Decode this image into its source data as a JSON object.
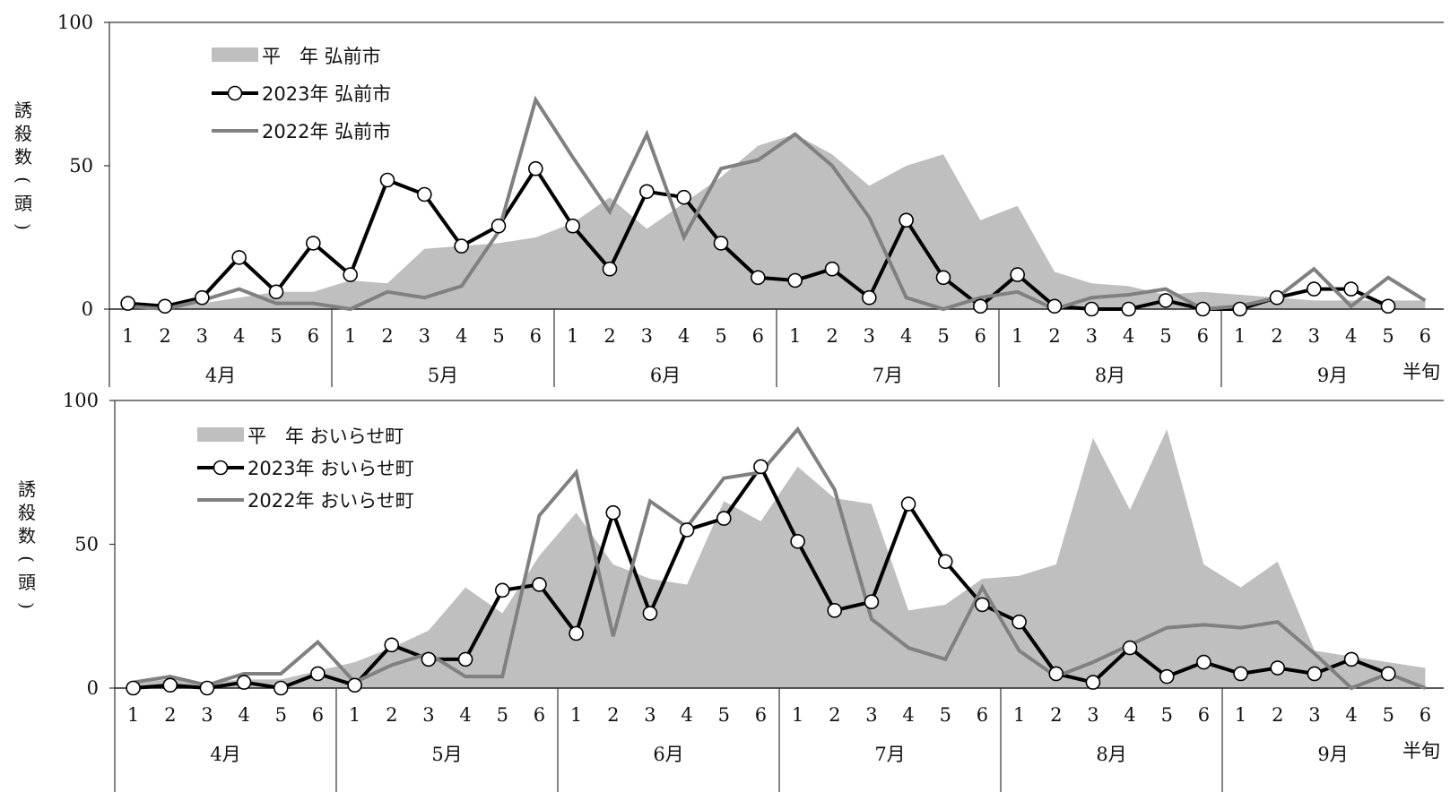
{
  "chart_data": [
    {
      "type": "line",
      "ylabel": "誘殺数(頭)",
      "ylim": [
        0,
        100
      ],
      "yticks": [
        0,
        50,
        100
      ],
      "months": [
        "4月",
        "5月",
        "6月",
        "7月",
        "8月",
        "9月"
      ],
      "subperiods": [
        "1",
        "2",
        "3",
        "4",
        "5",
        "6"
      ],
      "xunit": "半旬",
      "series": [
        {
          "name": "平　年 弘前市",
          "style": "area",
          "color": "#bfbfbf",
          "values": [
            1,
            1,
            2,
            4,
            6,
            6,
            10,
            9,
            21,
            22,
            23,
            25,
            30,
            39,
            28,
            37,
            46,
            57,
            61,
            54,
            43,
            50,
            54,
            31,
            36,
            13,
            9,
            8,
            5,
            6,
            5,
            4,
            3,
            3,
            3,
            3
          ]
        },
        {
          "name": "2023年 弘前市",
          "style": "line-marker",
          "color": "#000000",
          "values": [
            2,
            1,
            4,
            18,
            6,
            23,
            12,
            45,
            40,
            22,
            29,
            49,
            29,
            14,
            41,
            39,
            23,
            11,
            10,
            14,
            4,
            31,
            11,
            1,
            12,
            1,
            0,
            0,
            3,
            0,
            0,
            4,
            7,
            7,
            1,
            null
          ]
        },
        {
          "name": "2022年 弘前市",
          "style": "line",
          "color": "#808080",
          "values": [
            1,
            0,
            3,
            7,
            2,
            2,
            0,
            6,
            4,
            8,
            27,
            73,
            53,
            34,
            61,
            25,
            49,
            52,
            61,
            50,
            32,
            4,
            0,
            4,
            6,
            0,
            4,
            5,
            7,
            0,
            1,
            4,
            14,
            1,
            11,
            3
          ]
        }
      ]
    },
    {
      "type": "line",
      "ylabel": "誘殺数(頭)",
      "ylim": [
        0,
        100
      ],
      "yticks": [
        0,
        50,
        100
      ],
      "months": [
        "4月",
        "5月",
        "6月",
        "7月",
        "8月",
        "9月"
      ],
      "subperiods": [
        "1",
        "2",
        "3",
        "4",
        "5",
        "6"
      ],
      "xunit": "半旬",
      "series": [
        {
          "name": "平　年 おいらせ町",
          "style": "area",
          "color": "#bfbfbf",
          "values": [
            2,
            3,
            2,
            3,
            3,
            6,
            9,
            14,
            20,
            35,
            26,
            46,
            61,
            43,
            38,
            36,
            65,
            58,
            77,
            66,
            64,
            27,
            29,
            38,
            39,
            43,
            87,
            62,
            90,
            43,
            35,
            44,
            13,
            11,
            9,
            7
          ]
        },
        {
          "name": "2023年 おいらせ町",
          "style": "line-marker",
          "color": "#000000",
          "values": [
            0,
            1,
            0,
            2,
            0,
            5,
            1,
            15,
            10,
            10,
            34,
            36,
            19,
            61,
            26,
            55,
            59,
            77,
            51,
            27,
            30,
            64,
            44,
            29,
            23,
            5,
            2,
            14,
            4,
            9,
            5,
            7,
            5,
            10,
            5,
            null
          ]
        },
        {
          "name": "2022年 おいらせ町",
          "style": "line",
          "color": "#808080",
          "values": [
            2,
            4,
            1,
            5,
            5,
            16,
            2,
            8,
            12,
            4,
            4,
            60,
            75,
            18,
            65,
            56,
            73,
            75,
            90,
            69,
            24,
            14,
            10,
            35,
            13,
            4,
            9,
            15,
            21,
            22,
            21,
            23,
            12,
            0,
            5,
            0
          ]
        }
      ]
    }
  ]
}
